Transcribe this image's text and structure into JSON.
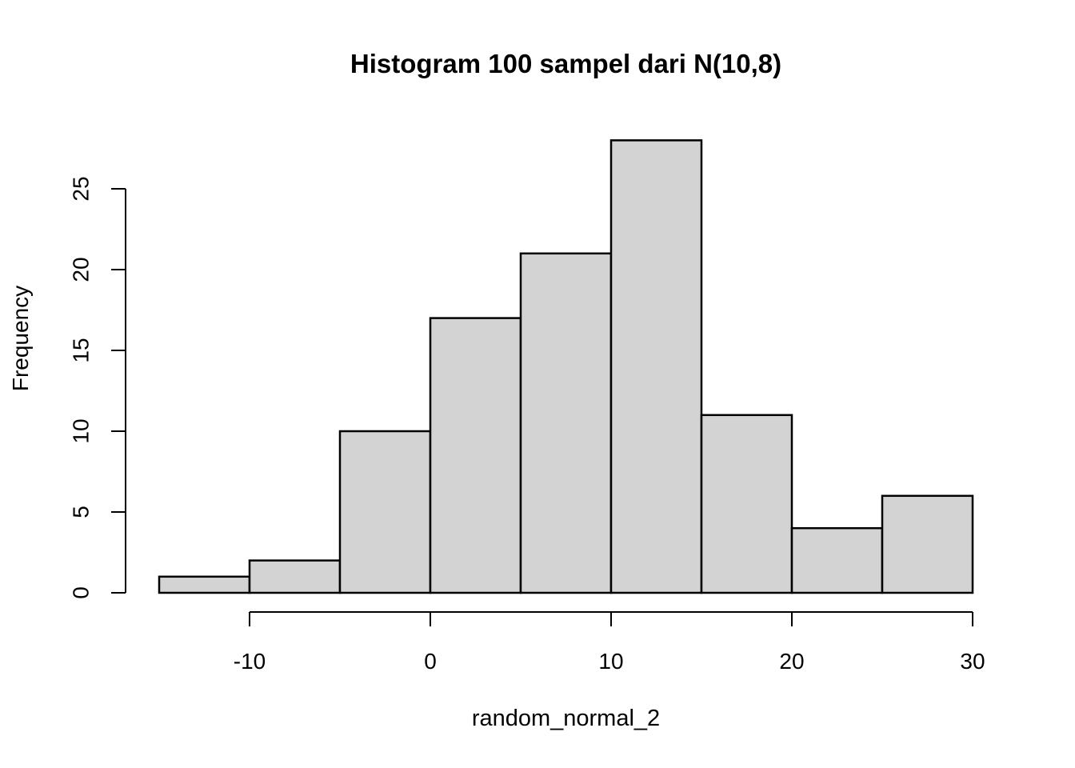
{
  "page": {
    "background": "#FFFFFF"
  },
  "chart_data": {
    "type": "bar",
    "subtype": "histogram",
    "title": "Histogram 100 sampel dari N(10,8)",
    "xlabel": "random_normal_2",
    "ylabel": "Frequency",
    "bin_edges": [
      -15,
      -10,
      -5,
      0,
      5,
      10,
      15,
      20,
      25,
      30
    ],
    "counts": [
      1,
      2,
      10,
      17,
      21,
      28,
      11,
      4,
      6
    ],
    "x_ticks": [
      -10,
      0,
      10,
      20,
      30
    ],
    "y_ticks": [
      0,
      5,
      10,
      15,
      20,
      25
    ],
    "xlim": [
      -15,
      30
    ],
    "ylim": [
      0,
      28
    ],
    "bar_fill": "#D3D3D3",
    "bar_stroke": "#000000",
    "axis_color": "#000000",
    "text_color": "#000000",
    "grid": false,
    "legend": false
  }
}
